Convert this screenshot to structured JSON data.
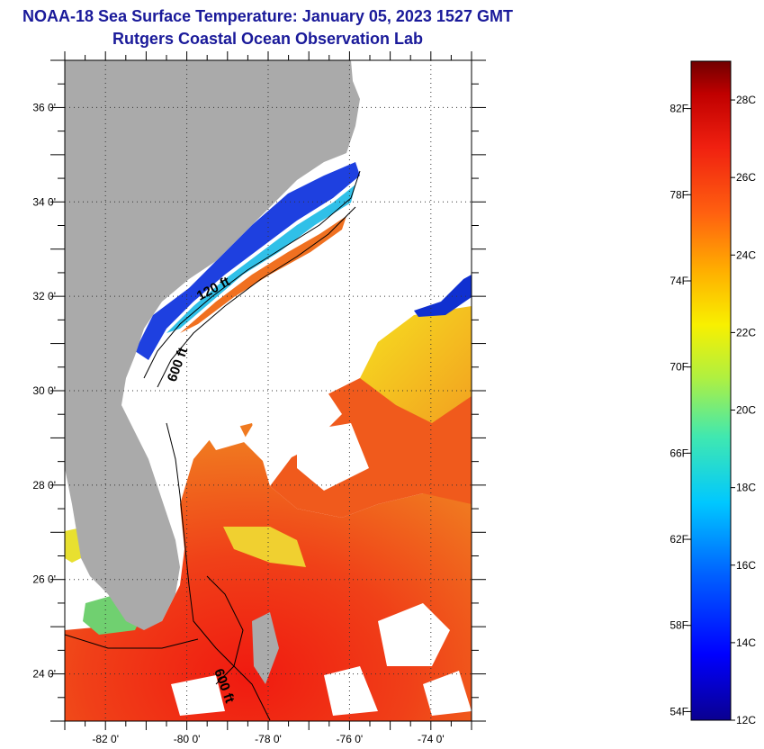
{
  "header": {
    "title_line1": "NOAA-18 Sea Surface Temperature:  January 05, 2023 1527 GMT",
    "title_line2": "Rutgers Coastal Ocean Observation Lab"
  },
  "map": {
    "lat_range": [
      23.0,
      37.0
    ],
    "lon_range": [
      -83.0,
      -73.0
    ],
    "lat_ticks": [
      {
        "value": 36,
        "label": "36 0'"
      },
      {
        "value": 34,
        "label": "34 0'"
      },
      {
        "value": 32,
        "label": "32 0'"
      },
      {
        "value": 30,
        "label": "30 0'"
      },
      {
        "value": 28,
        "label": "28 0'"
      },
      {
        "value": 26,
        "label": "26 0'"
      },
      {
        "value": 24,
        "label": "24 0'"
      }
    ],
    "lon_ticks": [
      {
        "value": -82,
        "label": "-82 0'"
      },
      {
        "value": -80,
        "label": "-80 0'"
      },
      {
        "value": -78,
        "label": "-78 0'"
      },
      {
        "value": -76,
        "label": "-76 0'"
      },
      {
        "value": -74,
        "label": "-74 0'"
      }
    ],
    "contour_labels": [
      "120 ft",
      "600 ft",
      "600 ft"
    ],
    "colors": {
      "land": "#aaaaaa",
      "cloud": "#ffffff",
      "warm": "#e8281c",
      "grid": "#555555"
    }
  },
  "colorbar": {
    "min_c": 12,
    "max_c": 29,
    "fahrenheit_labels": [
      "82F",
      "78F",
      "74F",
      "70F",
      "66F",
      "62F",
      "58F",
      "54F"
    ],
    "celsius_labels": [
      "28C",
      "26C",
      "24C",
      "22C",
      "20C",
      "18C",
      "16C",
      "14C",
      "12C"
    ]
  }
}
